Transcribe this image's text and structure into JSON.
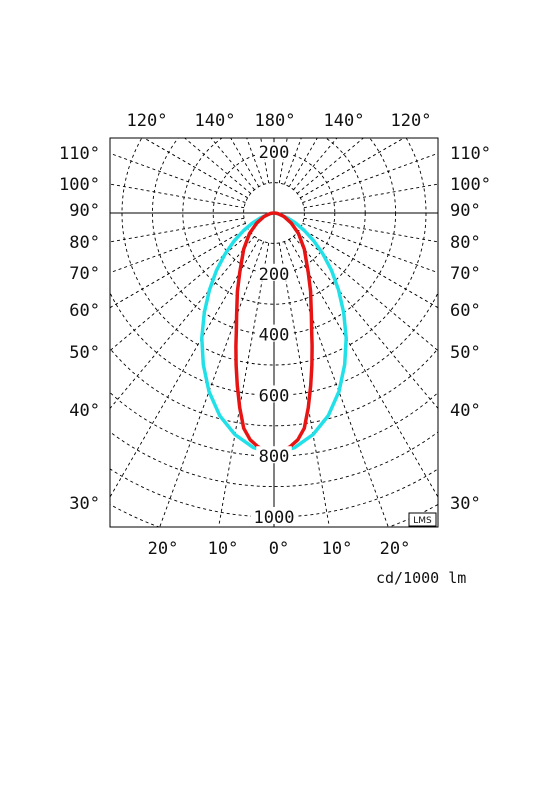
{
  "chart_data": {
    "type": "polar",
    "unit_label": "cd/1000 lm",
    "logo_text": "LMS",
    "top_angle_labels": [
      "120°",
      "140°",
      "180°",
      "140°",
      "120°"
    ],
    "side_angle_labels": [
      "110°",
      "100°",
      "90°",
      "80°",
      "70°",
      "60°",
      "50°",
      "40°",
      "30°"
    ],
    "bottom_angle_labels": [
      "20°",
      "10°",
      "0°",
      "10°",
      "20°"
    ],
    "radial_labels": [
      {
        "value": 200,
        "text": "200",
        "side": "upper"
      },
      {
        "value": 200,
        "text": "200",
        "side": "lower"
      },
      {
        "value": 400,
        "text": "400",
        "side": "lower"
      },
      {
        "value": 600,
        "text": "600",
        "side": "lower"
      },
      {
        "value": 800,
        "text": "800",
        "side": "lower"
      },
      {
        "value": 1000,
        "text": "1000",
        "side": "lower"
      }
    ],
    "radial_rings": [
      100,
      200,
      300,
      400,
      500,
      600,
      700,
      800,
      900,
      1000,
      1100
    ],
    "angular_grid_step_deg": 10,
    "series": [
      {
        "color": "#22e0e8",
        "angle_deg": [
          0,
          5,
          10,
          15,
          20,
          25,
          30,
          35,
          40,
          45,
          50,
          55,
          60,
          65,
          70,
          75,
          80,
          85,
          90
        ],
        "intensity": [
          790,
          775,
          740,
          690,
          625,
          550,
          475,
          400,
          330,
          268,
          210,
          160,
          115,
          78,
          47,
          24,
          10,
          3,
          0
        ]
      },
      {
        "color": "#e81414",
        "angle_deg": [
          0,
          2,
          4,
          6,
          8,
          10,
          12,
          14,
          16,
          18,
          20,
          25,
          30,
          40,
          50,
          60,
          70,
          80,
          85,
          90
        ],
        "intensity": [
          790,
          785,
          770,
          750,
          715,
          650,
          580,
          515,
          455,
          400,
          360,
          285,
          225,
          155,
          105,
          65,
          35,
          15,
          8,
          0
        ]
      }
    ]
  }
}
